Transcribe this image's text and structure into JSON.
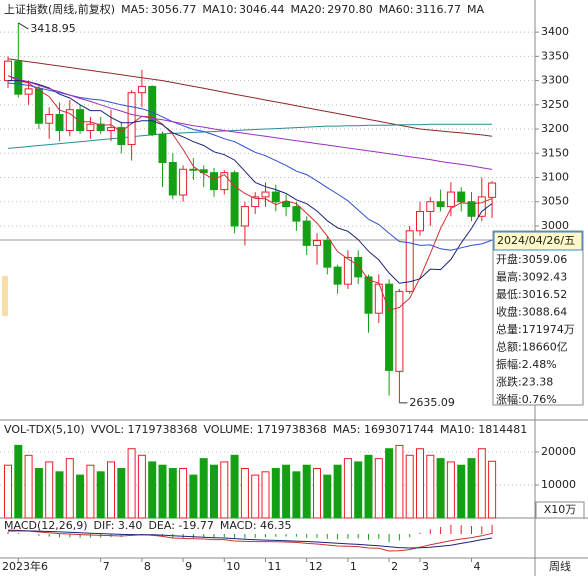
{
  "chart_data": {
    "type": "candlestick",
    "title": "上证指数(周线,前复权)",
    "header_more": "MA",
    "categories": [
      null,
      "2023年6",
      null,
      null,
      null,
      null,
      null,
      null,
      null,
      "7",
      null,
      null,
      null,
      "8",
      null,
      null,
      null,
      "9",
      null,
      null,
      null,
      "10",
      null,
      null,
      null,
      "11",
      null,
      null,
      null,
      "12",
      null,
      null,
      null,
      "1",
      null,
      null,
      null,
      "2",
      null,
      null,
      "3",
      null,
      null,
      null,
      null,
      "4",
      null,
      null
    ],
    "open": [
      3300,
      3340,
      3272,
      3283,
      3212,
      3230,
      3197,
      3240,
      3197,
      3210,
      3197,
      3203,
      3168,
      3275,
      3288,
      3189,
      3131,
      3064,
      3117,
      3116,
      3110,
      3075,
      3110,
      3000,
      3040,
      3060,
      3070,
      3050,
      3040,
      3010,
      2960,
      2970,
      2915,
      2880,
      2935,
      2895,
      2820,
      2880,
      2700,
      2865,
      2990,
      3030,
      3050,
      3040,
      3070,
      3050,
      3020,
      3059.06
    ],
    "high": [
      3350,
      3418.95,
      3300,
      3290,
      3245,
      3255,
      3260,
      3250,
      3225,
      3225,
      3240,
      3215,
      3280,
      3322,
      3290,
      3195,
      3150,
      3125,
      3140,
      3125,
      3120,
      3115,
      3115,
      3050,
      3070,
      3090,
      3085,
      3065,
      3050,
      3020,
      2985,
      2980,
      2920,
      2950,
      2950,
      2900,
      2900,
      2890,
      2870,
      3000,
      3050,
      3060,
      3075,
      3090,
      3080,
      3070,
      3100,
      3092.43
    ],
    "low": [
      3285,
      3265,
      3250,
      3200,
      3180,
      3175,
      3185,
      3190,
      3180,
      3190,
      3175,
      3150,
      3135,
      3245,
      3185,
      3080,
      3055,
      3050,
      3095,
      3080,
      3060,
      3065,
      2985,
      2960,
      3025,
      3040,
      3030,
      3020,
      2990,
      2940,
      2920,
      2900,
      2860,
      2870,
      2880,
      2780,
      2800,
      2650,
      2635.09,
      2860,
      2980,
      3000,
      3030,
      3020,
      3030,
      3010,
      3010,
      3016.52
    ],
    "close": [
      3340,
      3272,
      3283,
      3212,
      3230,
      3197,
      3240,
      3197,
      3210,
      3197,
      3203,
      3168,
      3275,
      3288,
      3189,
      3131,
      3064,
      3117,
      3116,
      3110,
      3075,
      3110,
      3000,
      3040,
      3060,
      3070,
      3050,
      3040,
      3010,
      2960,
      2970,
      2915,
      2880,
      2935,
      2895,
      2820,
      2880,
      2702,
      2865,
      2990,
      3030,
      3050,
      3040,
      3070,
      3050,
      3020,
      3060,
      3088.64
    ],
    "up_color": "#e8202a",
    "down_color": "#14a014",
    "ylim": [
      2610,
      3425
    ],
    "yticks": [
      3000,
      3050,
      3100,
      3150,
      3200,
      3250,
      3300,
      3350,
      3400
    ],
    "grid": true,
    "series": [
      {
        "name": "MA5:",
        "value_label": "3056.77",
        "color": "#d03030",
        "values": [
          3310,
          3300,
          3295,
          3280,
          3267,
          3239,
          3232,
          3215,
          3215,
          3208,
          3209,
          3195,
          3211,
          3226,
          3225,
          3210,
          3189,
          3158,
          3123,
          3108,
          3096,
          3106,
          3082,
          3067,
          3057,
          3056,
          3044,
          3052,
          3046,
          3026,
          3006,
          2979,
          2947,
          2932,
          2919,
          2889,
          2882,
          2826,
          2832,
          2851,
          2893,
          2943,
          2995,
          3036,
          3048,
          3046,
          3048,
          3056.77
        ]
      },
      {
        "name": "MA10:",
        "value_label": "3046.44",
        "color": "#1a237e",
        "values": [
          3300,
          3300,
          3298,
          3292,
          3285,
          3272,
          3264,
          3250,
          3238,
          3238,
          3224,
          3213,
          3213,
          3217,
          3217,
          3209,
          3192,
          3184,
          3174,
          3166,
          3153,
          3147,
          3136,
          3113,
          3090,
          3081,
          3075,
          3067,
          3054,
          3046,
          3031,
          3011,
          2996,
          2989,
          2972,
          2948,
          2930,
          2903,
          2882,
          2885,
          2891,
          2911,
          2910,
          2931,
          2965,
          2995,
          3030,
          3046.44
        ]
      },
      {
        "name": "MA20:",
        "value_label": "2970.80",
        "color": "#2f4fd0",
        "values": [
          3295,
          3293,
          3290,
          3285,
          3280,
          3275,
          3270,
          3265,
          3262,
          3260,
          3255,
          3250,
          3246,
          3242,
          3235,
          3225,
          3215,
          3207,
          3199,
          3195,
          3188,
          3180,
          3174,
          3163,
          3152,
          3145,
          3135,
          3125,
          3113,
          3106,
          3093,
          3079,
          3066,
          3052,
          3033,
          3014,
          3003,
          2985,
          2968,
          2965,
          2960,
          2961,
          2953,
          2950,
          2955,
          2960,
          2963,
          2970.8
        ]
      },
      {
        "name": "MA60:",
        "value_label": "3116.77",
        "color": "#9b30c0",
        "values": [
          3310,
          3303,
          3297,
          3290,
          3283,
          3277,
          3270,
          3263,
          3257,
          3250,
          3243,
          3237,
          3230,
          3226,
          3222,
          3219,
          3215,
          3211,
          3207,
          3204,
          3200,
          3197,
          3194,
          3191,
          3188,
          3185,
          3182,
          3179,
          3176,
          3173,
          3170,
          3167,
          3164,
          3161,
          3158,
          3155,
          3152,
          3149,
          3146,
          3143,
          3140,
          3137,
          3133,
          3130,
          3127,
          3124,
          3120,
          3116.77
        ]
      }
    ],
    "extra_lines": [
      {
        "color": "#8b2a2a",
        "values": [
          3345,
          3342,
          3339,
          3336,
          3333,
          3330,
          3327,
          3324,
          3321,
          3318,
          3315,
          3312,
          3309,
          3306,
          3303,
          3300,
          3296,
          3292,
          3288,
          3284,
          3280,
          3276,
          3272,
          3268,
          3264,
          3260,
          3256,
          3252,
          3248,
          3244,
          3240,
          3236,
          3232,
          3228,
          3224,
          3220,
          3216,
          3212,
          3208,
          3204,
          3200,
          3198,
          3196,
          3194,
          3192,
          3190,
          3188,
          3185
        ]
      },
      {
        "color": "#2a8a9a",
        "values": [
          3160,
          3162,
          3164,
          3166,
          3168,
          3170,
          3172,
          3174,
          3176,
          3178,
          3180,
          3182,
          3184,
          3186,
          3188,
          3190,
          3191,
          3192,
          3193,
          3194,
          3195,
          3196,
          3197,
          3198,
          3199,
          3200,
          3201,
          3202,
          3203,
          3204,
          3205,
          3206,
          3206,
          3207,
          3207,
          3208,
          3208,
          3208,
          3209,
          3209,
          3209,
          3210,
          3210,
          3210,
          3210,
          3210,
          3210,
          3210
        ]
      }
    ],
    "info": {
      "date": "2024/04/26/五",
      "rows": [
        "开盘:3059.06",
        "最高:3092.43",
        "最低:3016.52",
        "收盘:3088.64",
        "总量:171974万",
        "总额:18660亿",
        "振幅:2.48%",
        "涨跌:23.38",
        "涨幅:0.76%"
      ]
    },
    "volume": {
      "title": "VOL-TDX(5,10)",
      "header": [
        {
          "text": "VVOL: 1719738368",
          "color": "#c03080"
        },
        {
          "text": "VOLUME: 1719738368",
          "color": "#1a237e"
        },
        {
          "text": "MA5: 1693071744",
          "color": "#333333"
        },
        {
          "text": "MA10: 1814481",
          "color": "#2f4fd0"
        }
      ],
      "values": [
        16000,
        22000,
        19000,
        15000,
        17000,
        14000,
        18000,
        13000,
        16000,
        14000,
        17000,
        15000,
        21000,
        19000,
        17000,
        16000,
        15000,
        15000,
        13000,
        18000,
        16000,
        17000,
        19000,
        15000,
        13000,
        14000,
        15000,
        16000,
        14000,
        16000,
        15000,
        13000,
        16000,
        18000,
        17000,
        19000,
        18000,
        21000,
        22000,
        19000,
        21000,
        19000,
        18000,
        17000,
        16000,
        18000,
        21000,
        17197.38368
      ],
      "ylim": [
        0,
        29700
      ],
      "yticks": [
        10000,
        20000
      ],
      "unit": "X10万"
    },
    "macd": {
      "title": "MACD(12,26,9)",
      "header": [
        {
          "text": "DIF: 3.40",
          "color": "#d03030"
        },
        {
          "text": "DEA: -19.77",
          "color": "#1a237e"
        },
        {
          "text": "MACD: 46.35",
          "color": "#9b30c0"
        }
      ],
      "dif": {
        "color": "#d03030",
        "values": [
          20,
          18,
          15,
          10,
          6,
          2,
          0,
          -3,
          -5,
          -7,
          -8,
          -10,
          -7,
          -4,
          -6,
          -12,
          -20,
          -22,
          -24,
          -25,
          -28,
          -28,
          -35,
          -37,
          -38,
          -38,
          -39,
          -40,
          -42,
          -47,
          -50,
          -55,
          -60,
          -61,
          -63,
          -70,
          -71,
          -85,
          -84,
          -78,
          -66,
          -54,
          -44,
          -33,
          -25,
          -18,
          -9,
          3.4
        ]
      },
      "dea": {
        "color": "#1a237e",
        "values": [
          15,
          15.6,
          15.5,
          14.4,
          12.7,
          10.6,
          8.5,
          6.2,
          4,
          1.8,
          -0.2,
          -2.2,
          -3.1,
          -3.3,
          -3.8,
          -5.4,
          -8.3,
          -11,
          -13.6,
          -15.9,
          -18.3,
          -20.2,
          -23.2,
          -26,
          -28.4,
          -30.3,
          -32,
          -33.6,
          -35.3,
          -37.6,
          -40.1,
          -43.1,
          -46.5,
          -49.4,
          -52.1,
          -55.7,
          -58.8,
          -64,
          -68,
          -70,
          -69,
          -66,
          -61.6,
          -55.9,
          -47,
          -38,
          -28,
          -19.77
        ]
      },
      "values": [
        10,
        4.8,
        -1,
        -8.8,
        -13.4,
        -17.2,
        -17,
        -18.4,
        -18,
        -17.6,
        -15.6,
        -15.6,
        -7.8,
        -1.4,
        -4.4,
        -13.2,
        -23.4,
        -22,
        -20.8,
        -18.2,
        -19.4,
        -15.6,
        -23.6,
        -22,
        -19.2,
        -15.4,
        -14,
        -12.8,
        -13.4,
        -18.8,
        -19.8,
        -23.8,
        -27,
        -23.2,
        -21.8,
        -28.6,
        -24.4,
        -42,
        -32,
        -16,
        6,
        24,
        35.2,
        45.8,
        44,
        40,
        38,
        46.35
      ],
      "ylim": [
        -110,
        60
      ]
    },
    "period": "周线"
  }
}
